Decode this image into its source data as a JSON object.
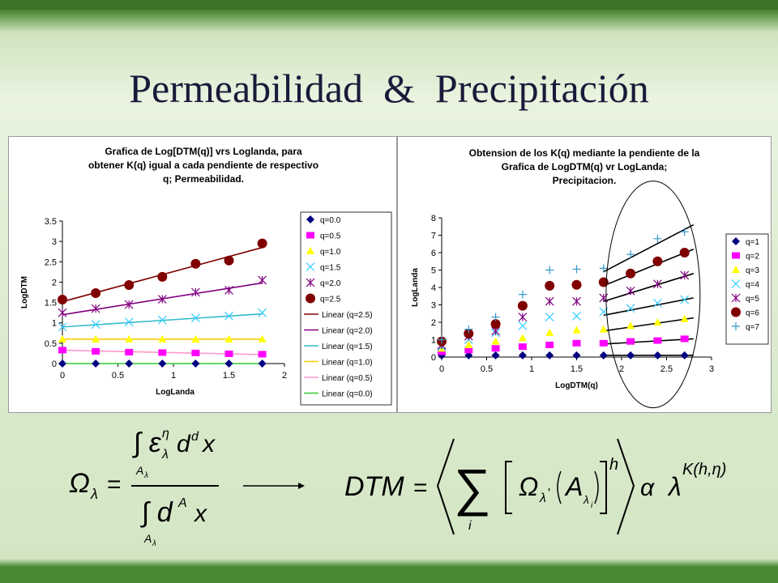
{
  "slide": {
    "title": "Permeabilidad  &  Precipitación"
  },
  "colors": {
    "q0": "#000080",
    "q05": "#ff00ff",
    "q1": "#ffff00",
    "q15": "#33ccff",
    "q2": "#800080",
    "q25": "#800000",
    "q7": "#3399cc",
    "line25": "#800000",
    "line2": "#800080",
    "line15": "#33bbcc",
    "line1": "#ffcc00",
    "line05": "#ff99cc",
    "line0": "#33cc33"
  },
  "chart_data": [
    {
      "type": "scatter",
      "title": "Grafica de Log[DTM(q)] vrs Loglanda, para obtener K(q) igual a cada pendiente de respectivo q; Permeabilidad.",
      "title_lines": [
        "Grafica de Log[DTM(q)] vrs Loglanda, para",
        "obtener K(q) igual a cada pendiente de respectivo",
        "q; Permeabilidad."
      ],
      "xlabel": "LogLanda",
      "ylabel": "LogDTM",
      "xlim": [
        0,
        2
      ],
      "ylim": [
        0,
        3.5
      ],
      "xticks": [
        0,
        0.5,
        1,
        1.5,
        2
      ],
      "xtick_labels": [
        "0",
        "0.5",
        "1",
        "1.5",
        "2"
      ],
      "yticks": [
        0,
        0.5,
        1,
        1.5,
        2,
        2.5,
        3,
        3.5
      ],
      "ytick_labels": [
        "0",
        "0.5",
        "1",
        "1.5",
        "2",
        "2.5",
        "3",
        "3.5"
      ],
      "legend_position": "right",
      "x": [
        0,
        0.3,
        0.6,
        0.9,
        1.2,
        1.5,
        1.8
      ],
      "series": [
        {
          "name": "q=0.0",
          "marker": "diamond",
          "color": "#000080",
          "values": [
            0,
            0,
            0,
            0,
            0,
            0,
            0
          ]
        },
        {
          "name": "q=0.5",
          "marker": "square",
          "color": "#ff00ff",
          "values": [
            0.33,
            0.3,
            0.28,
            0.27,
            0.26,
            0.24,
            0.23
          ]
        },
        {
          "name": "q=1.0",
          "marker": "triangle",
          "color": "#ffff00",
          "values": [
            0.6,
            0.6,
            0.6,
            0.6,
            0.6,
            0.6,
            0.6
          ]
        },
        {
          "name": "q=1.5",
          "marker": "x",
          "color": "#33ccff",
          "values": [
            0.9,
            0.96,
            1.02,
            1.07,
            1.12,
            1.17,
            1.25
          ]
        },
        {
          "name": "q=2.0",
          "marker": "star",
          "color": "#800080",
          "values": [
            1.25,
            1.35,
            1.45,
            1.58,
            1.75,
            1.8,
            2.05
          ]
        },
        {
          "name": "q=2.5",
          "marker": "circle",
          "color": "#800000",
          "values": [
            1.57,
            1.73,
            1.93,
            2.13,
            2.45,
            2.53,
            2.95
          ]
        }
      ],
      "trendlines": [
        {
          "name": "Linear (q=2.5)",
          "color": "#800000",
          "from": [
            0,
            1.52
          ],
          "to": [
            1.8,
            2.85
          ]
        },
        {
          "name": "Linear (q=2.0)",
          "color": "#800080",
          "from": [
            0,
            1.2
          ],
          "to": [
            1.8,
            1.98
          ]
        },
        {
          "name": "Linear (q=1.5)",
          "color": "#33bbcc",
          "from": [
            0,
            0.9
          ],
          "to": [
            1.8,
            1.22
          ]
        },
        {
          "name": "Linear (q=1.0)",
          "color": "#ffcc00",
          "from": [
            0,
            0.6
          ],
          "to": [
            1.8,
            0.6
          ]
        },
        {
          "name": "Linear (q=0.5)",
          "color": "#ff99cc",
          "from": [
            0,
            0.33
          ],
          "to": [
            1.8,
            0.22
          ]
        },
        {
          "name": "Linear (q=0.0)",
          "color": "#33cc33",
          "from": [
            0,
            0
          ],
          "to": [
            1.8,
            0
          ]
        }
      ]
    },
    {
      "type": "scatter",
      "title": "Obtension de los K(q) mediante la pendiente de la Grafica de LogDTM(q) vr LogLanda; Precipitacion.",
      "title_lines": [
        "Obtension de los K(q) mediante la pendiente de la",
        "Grafica de LogDTM(q) vr LogLanda;",
        "Precipitacion."
      ],
      "xlabel": "LogDTM(q)",
      "ylabel": "LogLanda",
      "xlim": [
        0,
        3
      ],
      "ylim": [
        0,
        8
      ],
      "xticks": [
        0,
        0.5,
        1,
        1.5,
        2,
        2.5,
        3
      ],
      "xtick_labels": [
        "0",
        "0.5",
        "1",
        "1.5",
        "2",
        "2.5",
        "3"
      ],
      "yticks": [
        0,
        1,
        2,
        3,
        4,
        5,
        6,
        7,
        8
      ],
      "ytick_labels": [
        "0",
        "1",
        "2",
        "3",
        "4",
        "5",
        "6",
        "7",
        "8"
      ],
      "legend_position": "right",
      "x": [
        0,
        0.3,
        0.6,
        0.9,
        1.2,
        1.5,
        1.8,
        2.1,
        2.4,
        2.7
      ],
      "series": [
        {
          "name": "q=1",
          "marker": "diamond",
          "color": "#000080",
          "values": [
            0.1,
            0.1,
            0.1,
            0.1,
            0.1,
            0.1,
            0.1,
            0.1,
            0.1,
            0.1
          ]
        },
        {
          "name": "q=2",
          "marker": "square",
          "color": "#ff00ff",
          "values": [
            0.3,
            0.4,
            0.5,
            0.6,
            0.7,
            0.8,
            0.8,
            0.9,
            0.95,
            1.05
          ]
        },
        {
          "name": "q=3",
          "marker": "triangle",
          "color": "#ffff00",
          "values": [
            0.5,
            0.7,
            0.9,
            1.1,
            1.4,
            1.55,
            1.6,
            1.8,
            2.0,
            2.2
          ]
        },
        {
          "name": "q=4",
          "marker": "x",
          "color": "#33ccff",
          "values": [
            0.6,
            1.0,
            1.4,
            1.8,
            2.3,
            2.35,
            2.6,
            2.8,
            3.1,
            3.3
          ]
        },
        {
          "name": "q=5",
          "marker": "star",
          "color": "#800080",
          "values": [
            0.7,
            1.2,
            1.5,
            2.3,
            3.2,
            3.2,
            3.4,
            3.8,
            4.2,
            4.7
          ]
        },
        {
          "name": "q=6",
          "marker": "circle",
          "color": "#800000",
          "values": [
            0.9,
            1.35,
            1.9,
            2.95,
            4.1,
            4.15,
            4.3,
            4.8,
            5.5,
            6.0
          ]
        },
        {
          "name": "q=7",
          "marker": "plus",
          "color": "#3399cc",
          "values": [
            1.0,
            1.6,
            2.3,
            3.6,
            5.0,
            5.05,
            5.1,
            5.9,
            6.8,
            7.2
          ]
        }
      ],
      "trendlines": [
        {
          "color": "#000000",
          "from": [
            1.8,
            0.1
          ],
          "to": [
            2.8,
            0.1
          ]
        },
        {
          "color": "#000000",
          "from": [
            1.8,
            0.75
          ],
          "to": [
            2.8,
            1.05
          ]
        },
        {
          "color": "#000000",
          "from": [
            1.8,
            1.5
          ],
          "to": [
            2.8,
            2.25
          ]
        },
        {
          "color": "#000000",
          "from": [
            1.8,
            2.4
          ],
          "to": [
            2.8,
            3.4
          ]
        },
        {
          "color": "#000000",
          "from": [
            1.8,
            3.2
          ],
          "to": [
            2.8,
            4.8
          ]
        },
        {
          "color": "#000000",
          "from": [
            1.8,
            4.1
          ],
          "to": [
            2.8,
            6.2
          ]
        },
        {
          "color": "#000000",
          "from": [
            1.8,
            4.9
          ],
          "to": [
            2.8,
            7.6
          ]
        }
      ],
      "annotation": "ellipse around x 1.7–3.0"
    }
  ],
  "formulas": {
    "left": {
      "lhs": "Ω",
      "lhs_sub": "λ",
      "equals": "=",
      "numerator": "∫ ε",
      "num_sup": "η",
      "num_sub_lambda": "λ",
      "num_rest": "d",
      "num_d_sup": "d",
      "num_x": "x",
      "int_sub": "A",
      "int_sub_sub": "λ",
      "denominator": "∫ d",
      "den_sup": "A",
      "den_x": "x"
    },
    "right": {
      "lhs": "DTM",
      "equals": "=",
      "sum": "∑",
      "sum_index": "i",
      "omega": "Ω",
      "omega_sub": "λ",
      "omega_prime": "'",
      "A": "A",
      "A_sub": "λ",
      "A_sub_sub": "i",
      "exp_h": "h",
      "alpha": "α",
      "lambda": "λ",
      "K": "K(h,η)"
    }
  }
}
